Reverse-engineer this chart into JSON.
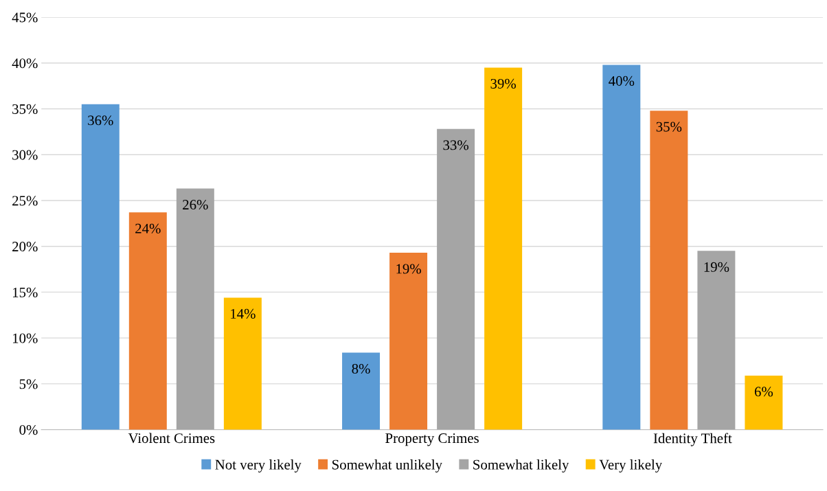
{
  "chart_data": {
    "type": "bar",
    "categories": [
      "Violent Crimes",
      "Property Crimes",
      "Identity Theft"
    ],
    "series": [
      {
        "name": "Not very likely",
        "color": "#5b9bd5",
        "values": [
          35.5,
          8.4,
          39.8
        ],
        "value_labels": [
          "36%",
          "8%",
          "40%"
        ]
      },
      {
        "name": "Somewhat unlikely",
        "color": "#ed7d31",
        "values": [
          23.7,
          19.3,
          34.8
        ],
        "value_labels": [
          "24%",
          "19%",
          "35%"
        ]
      },
      {
        "name": "Somewhat likely",
        "color": "#a5a5a5",
        "values": [
          26.3,
          32.8,
          19.5
        ],
        "value_labels": [
          "26%",
          "33%",
          "19%"
        ]
      },
      {
        "name": "Very likely",
        "color": "#ffc000",
        "values": [
          14.4,
          39.5,
          5.9
        ],
        "value_labels": [
          "14%",
          "39%",
          "6%"
        ]
      }
    ],
    "ylim": [
      0,
      45
    ],
    "yticks": [
      {
        "value": 0,
        "label": "0%"
      },
      {
        "value": 5,
        "label": "5%"
      },
      {
        "value": 10,
        "label": "10%"
      },
      {
        "value": 15,
        "label": "15%"
      },
      {
        "value": 20,
        "label": "20%"
      },
      {
        "value": 25,
        "label": "25%"
      },
      {
        "value": 30,
        "label": "30%"
      },
      {
        "value": 35,
        "label": "35%"
      },
      {
        "value": 40,
        "label": "40%"
      },
      {
        "value": 45,
        "label": "45%"
      }
    ],
    "grid": "y",
    "legend": "bottom"
  }
}
